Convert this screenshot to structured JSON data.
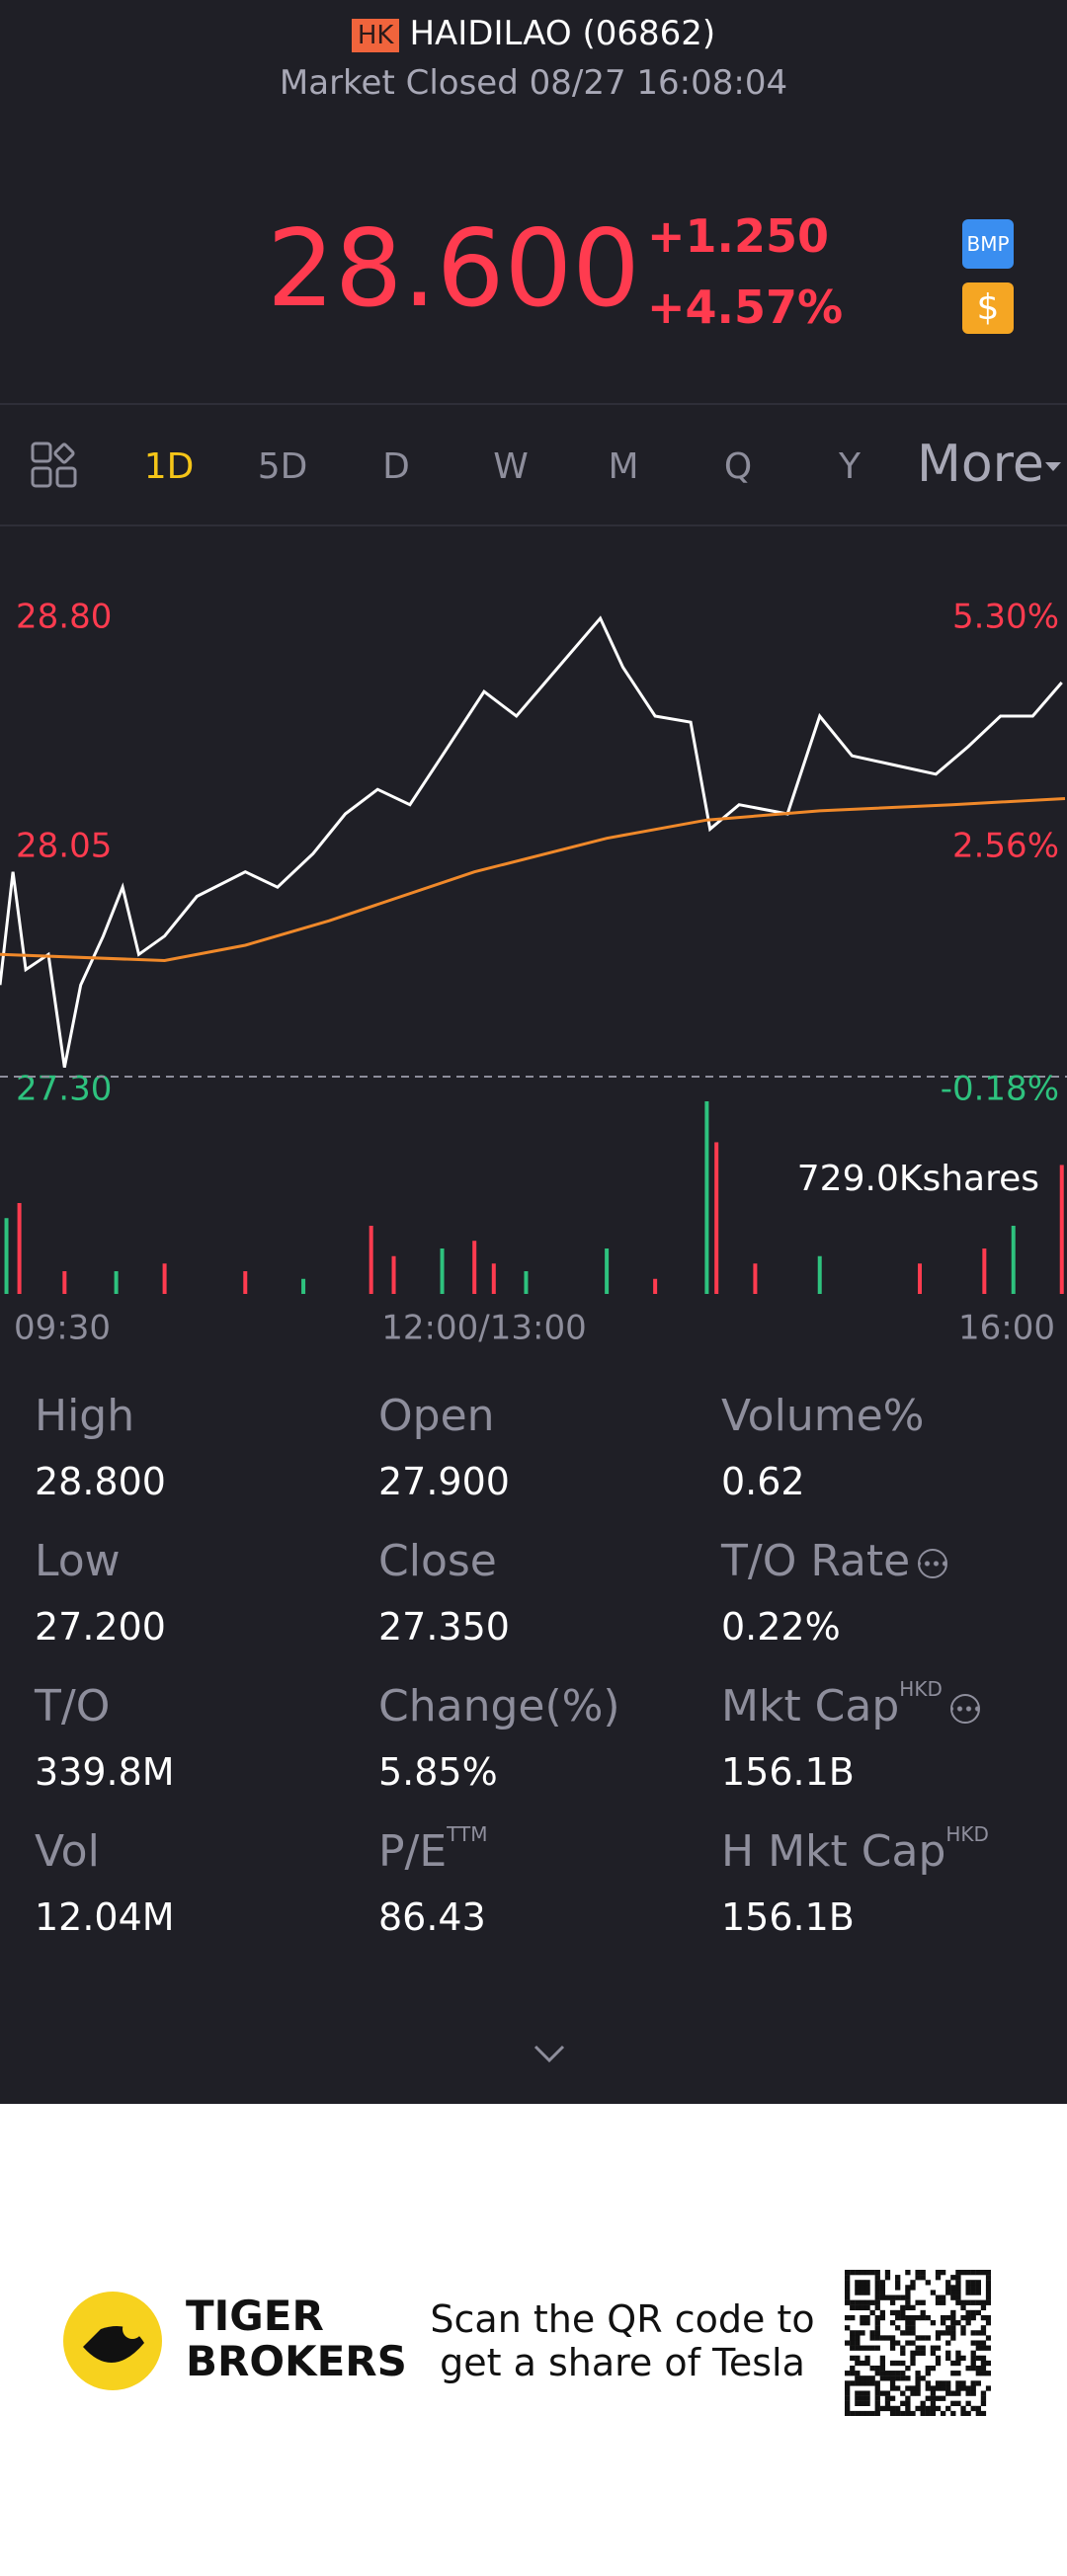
{
  "header": {
    "badge": "HK",
    "name": "HAIDILAO (06862)",
    "status": "Market Closed 08/27 16:08:04"
  },
  "quote": {
    "price": "28.600",
    "change": "+1.250",
    "change_pct": "+4.57%",
    "icons": [
      "BMP",
      "$"
    ]
  },
  "tabs": [
    "1D",
    "5D",
    "D",
    "W",
    "M",
    "Q",
    "Y",
    "More"
  ],
  "chart_data": {
    "type": "line",
    "x": [
      0,
      4,
      8,
      15,
      20,
      25,
      32,
      38,
      43,
      51,
      61,
      76,
      86,
      97,
      107,
      117,
      127,
      137,
      150,
      160,
      173,
      186,
      193,
      203,
      214,
      220,
      229,
      244,
      254,
      264,
      277,
      290,
      300,
      310,
      320,
      329
    ],
    "series": [
      {
        "color": "#ffffff",
        "values": [
          27.6,
          27.97,
          27.65,
          27.7,
          27.33,
          27.6,
          27.76,
          27.92,
          27.7,
          27.76,
          27.89,
          27.97,
          27.92,
          28.03,
          28.16,
          28.24,
          28.19,
          28.35,
          28.56,
          28.48,
          28.64,
          28.8,
          28.64,
          28.48,
          28.46,
          28.11,
          28.19,
          28.16,
          28.48,
          28.35,
          28.32,
          28.29,
          28.38,
          28.48,
          28.48,
          28.59
        ]
      },
      {
        "color": "#f0892a",
        "x": [
          0,
          51,
          76,
          102,
          147,
          188,
          219,
          254,
          295,
          330
        ],
        "values": [
          27.7,
          27.68,
          27.73,
          27.81,
          27.97,
          28.08,
          28.14,
          28.17,
          28.19,
          28.21
        ]
      }
    ],
    "xlim": [
      0,
      330
    ],
    "xticks": [
      {
        "value": 0,
        "label": "09:30"
      },
      {
        "value": 150,
        "label": "12:00/13:00"
      },
      {
        "value": 330,
        "label": "16:00"
      }
    ],
    "ylim": [
      27.3,
      28.8
    ],
    "yticks": [
      {
        "value": 28.8,
        "label": "28.80"
      },
      {
        "value": 28.05,
        "label": "28.05"
      },
      {
        "value": 27.3,
        "label": "27.30"
      }
    ],
    "y2lim": [
      -0.18,
      5.3
    ],
    "y2ticks": [
      {
        "value": 5.3,
        "label": "5.30%"
      },
      {
        "value": 2.56,
        "label": "2.56%"
      },
      {
        "value": -0.18,
        "label": "-0.18%"
      }
    ],
    "volume": {
      "max": {
        "value": 729,
        "label": "729.0Kshares"
      },
      "x": [
        2,
        6,
        20,
        36,
        51,
        76,
        94,
        115,
        122,
        137,
        147,
        153,
        163,
        188,
        203,
        219,
        222,
        234,
        254,
        285,
        305,
        314,
        329
      ],
      "values": [
        287,
        344,
        86,
        86,
        115,
        86,
        57,
        258,
        143,
        172,
        201,
        115,
        86,
        172,
        57,
        729,
        574,
        115,
        143,
        115,
        172,
        258,
        488
      ],
      "colors": [
        "#2ec27e",
        "#ff3b4f",
        "#ff3b4f",
        "#2ec27e",
        "#ff3b4f",
        "#ff3b4f",
        "#2ec27e",
        "#ff3b4f",
        "#ff3b4f",
        "#2ec27e",
        "#ff3b4f",
        "#ff3b4f",
        "#2ec27e",
        "#2ec27e",
        "#ff3b4f",
        "#2ec27e",
        "#ff3b4f",
        "#ff3b4f",
        "#2ec27e",
        "#ff3b4f",
        "#ff3b4f",
        "#2ec27e",
        "#ff3b4f"
      ]
    }
  },
  "stats": [
    {
      "label": "High",
      "value": "28.800"
    },
    {
      "label": "Open",
      "value": "27.900"
    },
    {
      "label": "Volume%",
      "value": "0.62"
    },
    {
      "label": "Low",
      "value": "27.200"
    },
    {
      "label": "Close",
      "value": "27.350"
    },
    {
      "label": "T/O Rate",
      "value": "0.22%",
      "info": true
    },
    {
      "label": "T/O",
      "value": "339.8M"
    },
    {
      "label": "Change(%)",
      "value": "5.85%"
    },
    {
      "label": "Mkt Cap",
      "sup": "HKD",
      "value": "156.1B",
      "info": true
    },
    {
      "label": "Vol",
      "value": "12.04M"
    },
    {
      "label": "P/E",
      "sup": "TTM",
      "value": "86.43"
    },
    {
      "label": "H Mkt Cap",
      "sup": "HKD",
      "value": "156.1B"
    }
  ],
  "footer": {
    "brand": [
      "TIGER",
      "BROKERS"
    ],
    "text": [
      "Scan the QR code to",
      "get a share of Tesla"
    ]
  }
}
